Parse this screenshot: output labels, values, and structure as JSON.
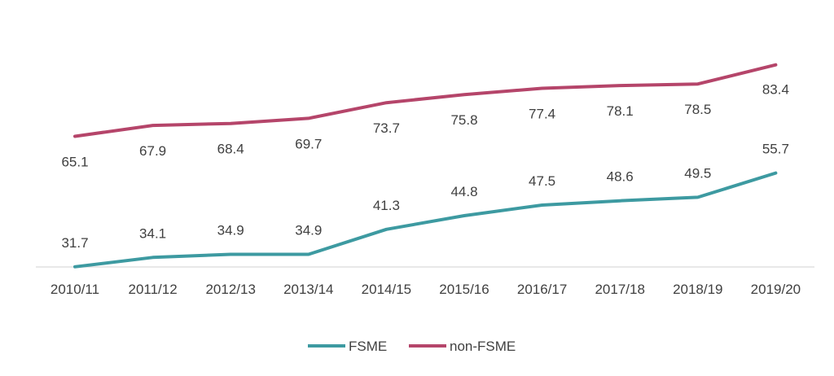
{
  "chart_data": {
    "type": "line",
    "title": "",
    "xlabel": "",
    "ylabel": "",
    "categories": [
      "2010/11",
      "2011/12",
      "2012/13",
      "2013/14",
      "2014/15",
      "2015/16",
      "2016/17",
      "2017/18",
      "2018/19",
      "2019/20"
    ],
    "ylim": [
      0,
      100
    ],
    "grid": false,
    "y_axis_visible": false,
    "legend_position": "bottom",
    "series": [
      {
        "name": "FSME",
        "color": "#3d9aa1",
        "values": [
          31.7,
          34.1,
          34.9,
          34.9,
          41.3,
          44.8,
          47.5,
          48.6,
          49.5,
          55.7
        ],
        "labels": [
          "31.7",
          "34.1",
          "34.9",
          "34.9",
          "41.3",
          "44.8",
          "47.5",
          "48.6",
          "49.5",
          "55.7"
        ]
      },
      {
        "name": "non-FSME",
        "color": "#b5456a",
        "values": [
          65.1,
          67.9,
          68.4,
          69.7,
          73.7,
          75.8,
          77.4,
          78.1,
          78.5,
          83.4
        ],
        "labels": [
          "65.1",
          "67.9",
          "68.4",
          "69.7",
          "73.7",
          "75.8",
          "77.4",
          "78.1",
          "78.5",
          "83.4"
        ]
      }
    ]
  }
}
